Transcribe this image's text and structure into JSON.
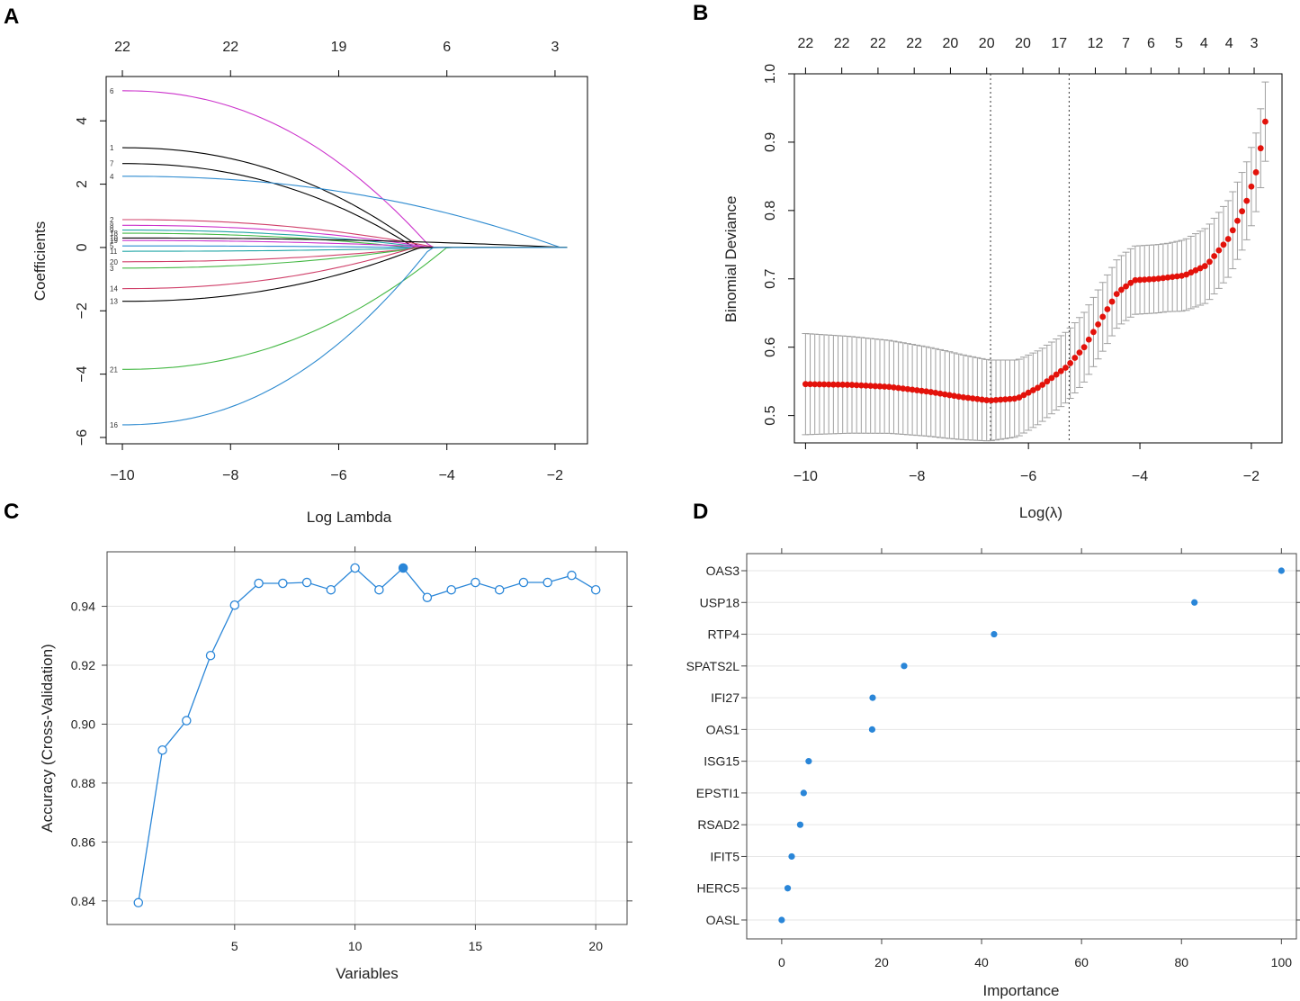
{
  "chart_data": [
    {
      "panel": "A",
      "type": "line",
      "xlabel": "Log Lambda",
      "ylabel": "Coefficients",
      "xlim": [
        -10.3,
        -1.4
      ],
      "ylim": [
        -6.2,
        5.4
      ],
      "xticks": [
        -10,
        -8,
        -6,
        -4,
        -2
      ],
      "yticks": [
        -6,
        -4,
        -2,
        0,
        2,
        4
      ],
      "top_axis": {
        "at": [
          -10,
          -8,
          -6,
          -4,
          -2
        ],
        "labels": [
          "22",
          "22",
          "19",
          "6",
          "3"
        ]
      },
      "series": [
        {
          "name": "6",
          "color": "#cc33cc",
          "start": 4.95,
          "zero_at": -4.3
        },
        {
          "name": "1",
          "color": "#000000",
          "start": 3.15,
          "zero_at": -4.5
        },
        {
          "name": "7",
          "color": "#000000",
          "start": 2.65,
          "zero_at": -4.6
        },
        {
          "name": "4",
          "color": "#2e8bd0",
          "start": 2.25,
          "zero_at": -1.9
        },
        {
          "name": "2",
          "color": "#d0406a",
          "start": 0.88,
          "zero_at": -4.2
        },
        {
          "name": "8",
          "color": "#cc33cc",
          "start": 0.7,
          "zero_at": -4.3
        },
        {
          "name": "9",
          "color": "#22a6a6",
          "start": 0.55,
          "zero_at": -4.4
        },
        {
          "name": "18",
          "color": "#44b844",
          "start": 0.45,
          "zero_at": -4.7
        },
        {
          "name": "10",
          "color": "#000000",
          "start": 0.3,
          "zero_at": -1.8
        },
        {
          "name": "19",
          "color": "#cc33cc",
          "start": 0.22,
          "zero_at": -4.1
        },
        {
          "name": "5",
          "color": "#2e8bd0",
          "start": 0.05,
          "zero_at": -4.6
        },
        {
          "name": "11",
          "color": "#22a6a6",
          "start": -0.12,
          "zero_at": -4.0
        },
        {
          "name": "20",
          "color": "#d0406a",
          "start": -0.45,
          "zero_at": -4.4
        },
        {
          "name": "3",
          "color": "#44b844",
          "start": -0.65,
          "zero_at": -4.5
        },
        {
          "name": "14",
          "color": "#d0406a",
          "start": -1.3,
          "zero_at": -4.6
        },
        {
          "name": "13",
          "color": "#000000",
          "start": -1.7,
          "zero_at": -4.5
        },
        {
          "name": "21",
          "color": "#44b844",
          "start": -3.85,
          "zero_at": -4.0
        },
        {
          "name": "16",
          "color": "#2e8bd0",
          "start": -5.6,
          "zero_at": -4.3
        }
      ]
    },
    {
      "panel": "B",
      "type": "scatter",
      "xlabel": "Log(λ)",
      "ylabel": "Binomial Deviance",
      "xlim": [
        -10.2,
        -1.45
      ],
      "ylim": [
        0.46,
        1.0
      ],
      "xticks": [
        -10,
        -8,
        -6,
        -4,
        -2
      ],
      "yticks": [
        0.5,
        0.6,
        0.7,
        0.8,
        0.9,
        1.0
      ],
      "top_axis": {
        "at": [
          -10,
          -9.35,
          -8.7,
          -8.05,
          -7.4,
          -6.75,
          -6.1,
          -5.45,
          -4.8,
          -4.25,
          -3.8,
          -3.3,
          -2.85,
          -2.4,
          -1.95
        ],
        "labels": [
          "22",
          "22",
          "22",
          "22",
          "20",
          "20",
          "20",
          "17",
          "12",
          "7",
          "6",
          "5",
          "4",
          "4",
          "3"
        ]
      },
      "vlines": [
        -6.68,
        -5.27
      ],
      "curve_knots": [
        [
          -10,
          0.546
        ],
        [
          -9.2,
          0.545
        ],
        [
          -8.5,
          0.542
        ],
        [
          -7.8,
          0.535
        ],
        [
          -7.2,
          0.527
        ],
        [
          -6.7,
          0.522
        ],
        [
          -6.2,
          0.525
        ],
        [
          -5.8,
          0.542
        ],
        [
          -5.3,
          0.572
        ],
        [
          -5,
          0.6
        ],
        [
          -4.7,
          0.64
        ],
        [
          -4.4,
          0.68
        ],
        [
          -4.1,
          0.698
        ],
        [
          -3.7,
          0.7
        ],
        [
          -3.2,
          0.705
        ],
        [
          -2.8,
          0.72
        ],
        [
          -2.4,
          0.76
        ],
        [
          -2.1,
          0.81
        ],
        [
          -1.9,
          0.86
        ],
        [
          -1.75,
          0.93
        ]
      ],
      "band_knots": [
        [
          -10,
          0.074
        ],
        [
          -7.5,
          0.064
        ],
        [
          -6.5,
          0.058
        ],
        [
          -5.5,
          0.052
        ],
        [
          -4.5,
          0.05
        ],
        [
          -3.5,
          0.05
        ],
        [
          -2.8,
          0.055
        ],
        [
          -2.1,
          0.057
        ],
        [
          -1.75,
          0.058
        ]
      ]
    },
    {
      "panel": "C",
      "type": "line",
      "xlabel": "Variables",
      "ylabel": "Accuracy (Cross-Validation)",
      "xlim": [
        -0.3,
        21.3
      ],
      "ylim": [
        0.832,
        0.9585
      ],
      "xticks": [
        5,
        10,
        15,
        20
      ],
      "yticks": [
        0.84,
        0.86,
        0.88,
        0.9,
        0.92,
        0.94
      ],
      "x": [
        1,
        2,
        3,
        4,
        5,
        6,
        7,
        8,
        9,
        10,
        11,
        12,
        13,
        14,
        15,
        16,
        17,
        18,
        19,
        20
      ],
      "values": [
        0.8394,
        0.8912,
        0.9012,
        0.9233,
        0.9404,
        0.9478,
        0.9478,
        0.9481,
        0.9456,
        0.953,
        0.9456,
        0.953,
        0.943,
        0.9456,
        0.9481,
        0.9456,
        0.9481,
        0.9481,
        0.9505,
        0.9456
      ],
      "best_index": 11
    },
    {
      "panel": "D",
      "type": "scatter",
      "xlabel": "Importance",
      "xlim": [
        -7,
        103
      ],
      "xticks": [
        0,
        20,
        40,
        60,
        80,
        100
      ],
      "categories": [
        "OAS3",
        "USP18",
        "RTP4",
        "SPATS2L",
        "IFI27",
        "OAS1",
        "ISG15",
        "EPSTI1",
        "RSAD2",
        "IFIT5",
        "HERC5",
        "OASL"
      ],
      "values": [
        100,
        82.6,
        42.5,
        24.5,
        18.2,
        18.1,
        5.4,
        4.4,
        3.7,
        2.0,
        1.2,
        0
      ]
    }
  ],
  "panel_letters": [
    "A",
    "B",
    "C",
    "D"
  ],
  "colors": {
    "accent_blue": "#2a86d8",
    "deviance_red": "#e3120b",
    "errorbar_grey": "#a0a0a0",
    "grid": "#e6e6e6"
  }
}
